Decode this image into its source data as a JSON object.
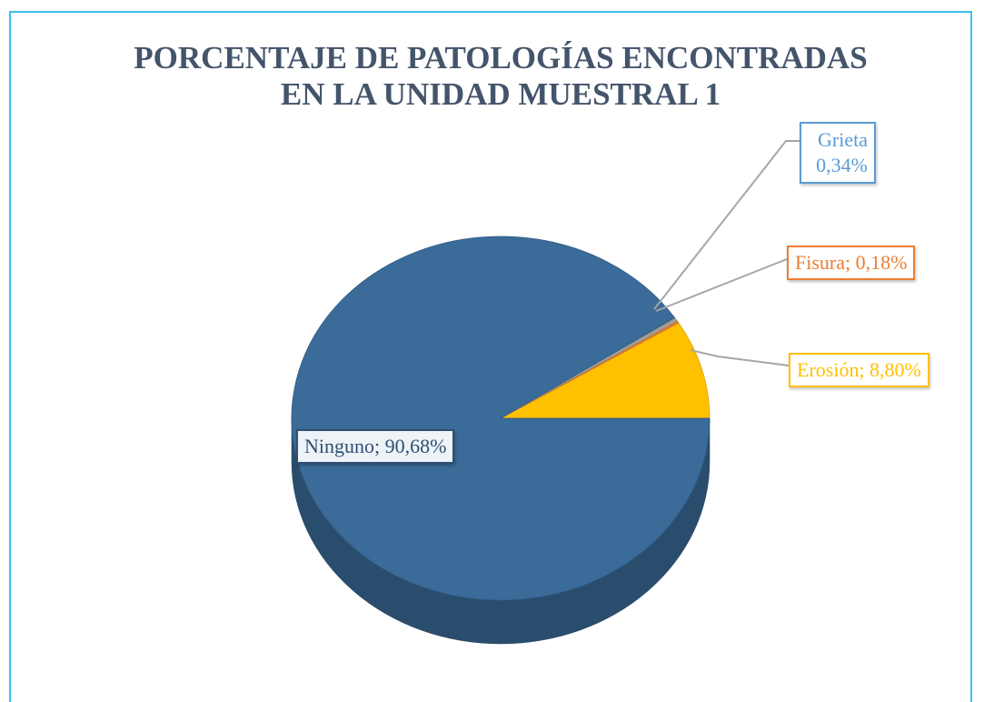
{
  "chart_data": {
    "type": "pie",
    "title": [
      "PORCENTAJE DE PATOLOGÍAS ENCONTRADAS",
      "EN LA UNIDAD MUESTRAL 1"
    ],
    "categories": [
      "Erosión",
      "Fisura",
      "Grieta",
      "Ninguno"
    ],
    "values": [
      8.8,
      0.18,
      0.34,
      90.68
    ],
    "value_labels": [
      "Erosión; 8,80%",
      "Fisura; 0,18%",
      "Grieta 0,34%",
      "Ninguno; 90,68%"
    ],
    "colors": [
      "#ffc000",
      "#ed7d31",
      "#a5a090",
      "#3a6b99"
    ]
  }
}
